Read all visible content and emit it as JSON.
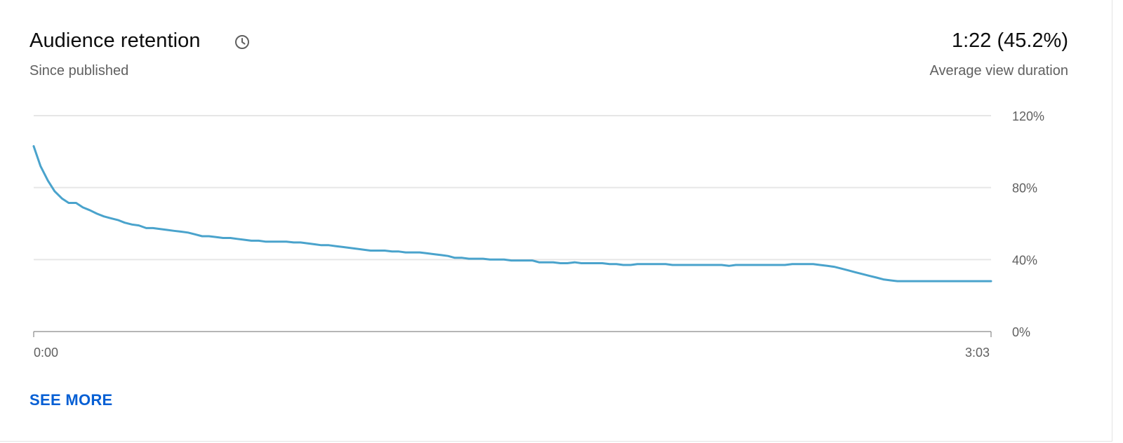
{
  "card": {
    "title": "Audience retention",
    "subtitle": "Since published",
    "metric_value": "1:22 (45.2%)",
    "metric_label": "Average view duration",
    "see_more_label": "SEE MORE",
    "info_icon": "clock-icon"
  },
  "colors": {
    "line": "#4aa3cc",
    "grid": "#e6e6e6",
    "axis": "#8a8a8a",
    "link": "#065fd4"
  },
  "chart_data": {
    "type": "line",
    "title": "",
    "xlabel": "",
    "ylabel": "",
    "ylim": [
      0,
      120
    ],
    "yticks": [
      0,
      40,
      80,
      120
    ],
    "ytick_labels": [
      "0%",
      "40%",
      "80%",
      "120%"
    ],
    "xlim": [
      0,
      183
    ],
    "xticks": [
      0,
      183
    ],
    "xtick_labels": [
      "0:00",
      "3:03"
    ],
    "grid": true,
    "series": [
      {
        "x": [
          0,
          1.3,
          2.7,
          4,
          5.4,
          6.7,
          8.1,
          9.4,
          10.7,
          12.1,
          13.4,
          14.7,
          16.1,
          17.4,
          18.8,
          20.1,
          21.5,
          22.8,
          24.2,
          25.5,
          26.8,
          28.2,
          29.5,
          30.9,
          32.2,
          33.5,
          34.9,
          36.2,
          37.6,
          38.9,
          40.3,
          41.6,
          43,
          44.3,
          45.6,
          47,
          48.3,
          49.7,
          51,
          52.4,
          53.7,
          55,
          56.4,
          57.7,
          59.1,
          60.4,
          61.7,
          63.1,
          64.4,
          65.8,
          67.1,
          68.5,
          69.8,
          71.1,
          72.5,
          73.8,
          75.2,
          76.5,
          77.9,
          79.2,
          80.5,
          81.9,
          83.2,
          84.6,
          85.9,
          87.2,
          88.6,
          89.9,
          91.3,
          92.6,
          94,
          95.3,
          96.6,
          98,
          99.3,
          100.7,
          102,
          103.4,
          104.7,
          106,
          107.4,
          108.7,
          110.1,
          111.4,
          112.7,
          114.1,
          115.4,
          116.8,
          118.1,
          119.5,
          120.8,
          122.1,
          123.5,
          124.8,
          126.2,
          127.5,
          128.9,
          130.2,
          131.5,
          132.9,
          134.2,
          135.6,
          136.9,
          138.2,
          139.6,
          140.9,
          142.3,
          143.6,
          145,
          146.3,
          147.6,
          149,
          150.3,
          151.7,
          153,
          154.4,
          155.7,
          157,
          158.4,
          159.7,
          161.1,
          162.4,
          163.7,
          165.1,
          166.4,
          167.8,
          169.1,
          170.5,
          171.8,
          173.1,
          174.5,
          175.8,
          177.2,
          178.5,
          179.9,
          181.2,
          182.5,
          183
        ],
        "values": [
          103,
          92,
          84,
          78,
          74,
          71.5,
          71.5,
          69,
          67.5,
          65.5,
          64,
          63,
          62,
          60.5,
          59.5,
          59,
          57.5,
          57.5,
          57,
          56.5,
          56,
          55.5,
          55,
          54,
          53,
          53,
          52.5,
          52,
          52,
          51.5,
          51,
          50.5,
          50.5,
          50,
          50,
          50,
          50,
          49.5,
          49.5,
          49,
          48.5,
          48,
          48,
          47.5,
          47,
          46.5,
          46,
          45.5,
          45,
          45,
          45,
          44.5,
          44.5,
          44,
          44,
          44,
          43.5,
          43,
          42.5,
          42,
          41,
          41,
          40.5,
          40.5,
          40.5,
          40,
          40,
          40,
          39.5,
          39.5,
          39.5,
          39.5,
          38.5,
          38.5,
          38.5,
          38,
          38,
          38.5,
          38,
          38,
          38,
          38,
          37.5,
          37.5,
          37,
          37,
          37.5,
          37.5,
          37.5,
          37.5,
          37.5,
          37,
          37,
          37,
          37,
          37,
          37,
          37,
          37,
          36.5,
          37,
          37,
          37,
          37,
          37,
          37,
          37,
          37,
          37.5,
          37.5,
          37.5,
          37.5,
          37,
          36.5,
          36,
          35,
          34,
          33,
          32,
          31,
          30,
          29,
          28.5,
          28,
          28,
          28,
          28,
          28,
          28,
          28,
          28,
          28,
          28,
          28,
          28,
          28,
          28,
          28
        ]
      }
    ]
  }
}
